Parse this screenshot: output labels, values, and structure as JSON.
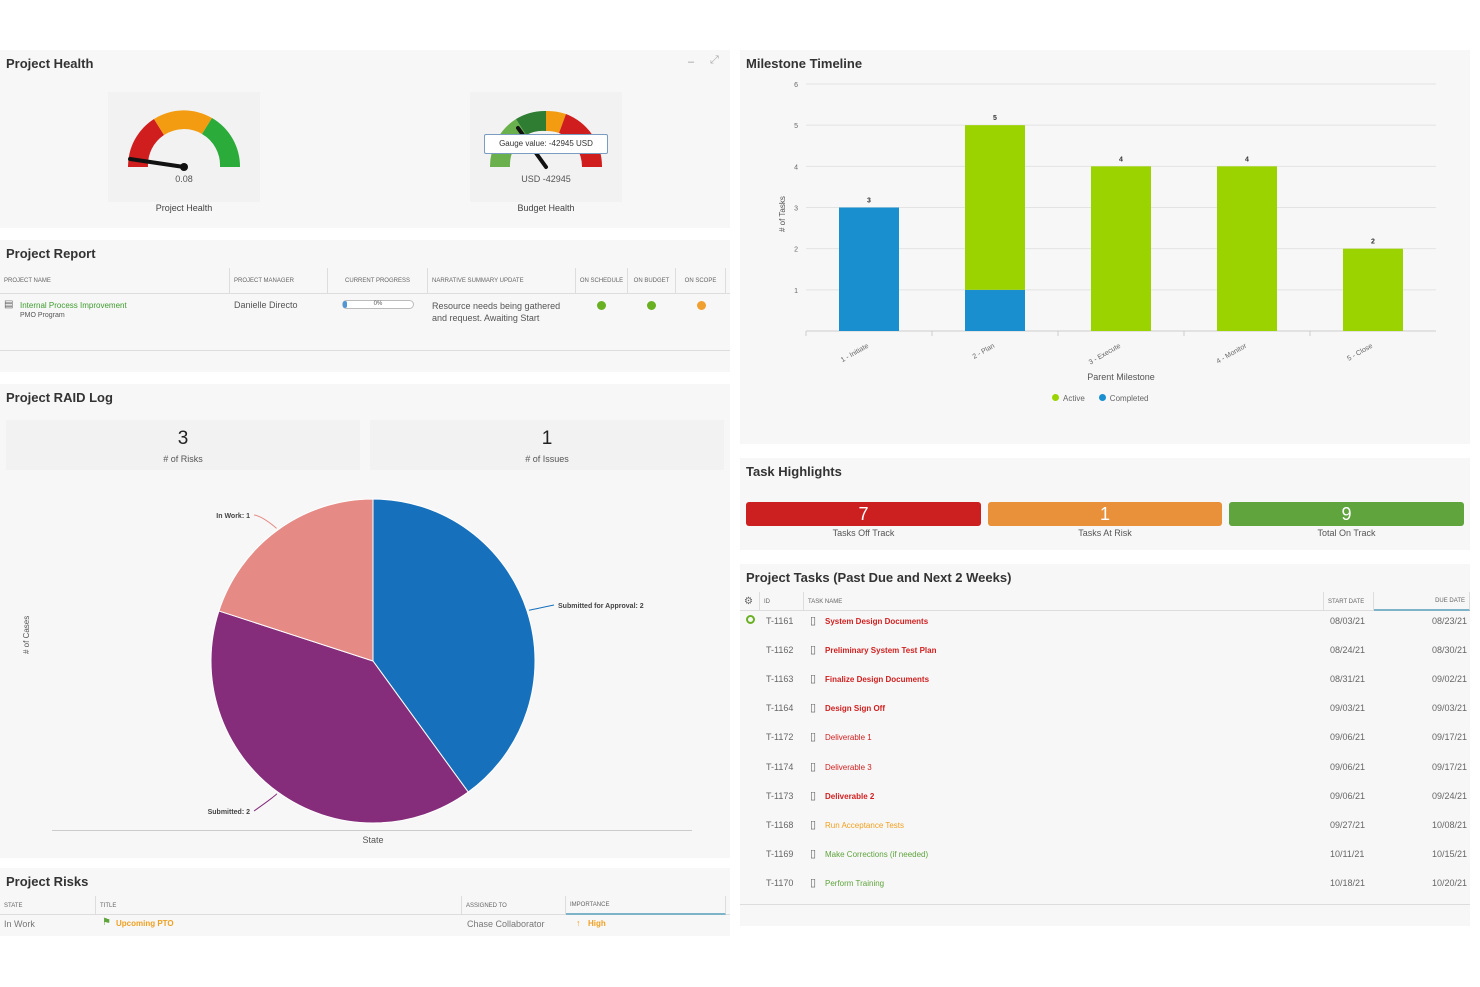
{
  "health": {
    "title": "Project Health",
    "gauge1": {
      "value_text": "0.08",
      "label": "Project Health"
    },
    "gauge2": {
      "value_text": "USD -42945",
      "label": "Budget Health",
      "tooltip": "Gauge value: -42945 USD"
    }
  },
  "report": {
    "title": "Project Report",
    "headers": [
      "Project Name",
      "Project Manager",
      "Current Progress",
      "Narrative Summary Update",
      "On Schedule",
      "On Budget",
      "On Scope"
    ],
    "row": {
      "name": "Internal Process Improvement",
      "program": "PMO Program",
      "manager": "Danielle Directo",
      "progress": "0%",
      "progress_value": 0,
      "narrative": "Resource needs being gathered and request. Awaiting Start",
      "status_colors": [
        "#6ab023",
        "#6ab023",
        "#f0a030"
      ]
    }
  },
  "raid": {
    "title": "Project RAID Log",
    "risks_count": "3",
    "risks_label": "# of Risks",
    "issues_count": "1",
    "issues_label": "# of Issues",
    "y_label": "# of Cases",
    "x_label": "State"
  },
  "risks": {
    "title": "Project Risks",
    "headers": [
      "State",
      "Title",
      "Assigned To",
      "Importance"
    ],
    "row": {
      "state": "In Work",
      "title": "Upcoming PTO",
      "assigned": "Chase Collaborator",
      "importance": "High"
    }
  },
  "milestone": {
    "title": "Milestone Timeline",
    "y_label": "# of Tasks",
    "x_label": "Parent Milestone",
    "legend": [
      "Active",
      "Completed"
    ]
  },
  "highlights": {
    "title": "Task Highlights",
    "tiles": [
      {
        "value": "7",
        "label": "Tasks Off Track",
        "color": "#cc1f1f"
      },
      {
        "value": "1",
        "label": "Tasks At Risk",
        "color": "#e8913a"
      },
      {
        "value": "9",
        "label": "Total On Track",
        "color": "#5fa43d"
      }
    ]
  },
  "tasks": {
    "title": "Project Tasks (Past Due and Next 2 Weeks)",
    "headers": [
      "ID",
      "Task Name",
      "Start Date",
      "Due Date"
    ],
    "rows": [
      {
        "id": "T-1161",
        "name": "System Design Documents",
        "start": "08/03/21",
        "due": "08/23/21",
        "color": "#d11f1f",
        "bold": true
      },
      {
        "id": "T-1162",
        "name": "Preliminary System Test Plan",
        "start": "08/24/21",
        "due": "08/30/21",
        "color": "#d11f1f",
        "bold": true
      },
      {
        "id": "T-1163",
        "name": "Finalize Design Documents",
        "start": "08/31/21",
        "due": "09/02/21",
        "color": "#d11f1f",
        "bold": true
      },
      {
        "id": "T-1164",
        "name": "Design Sign Off",
        "start": "09/03/21",
        "due": "09/03/21",
        "color": "#d11f1f",
        "bold": true
      },
      {
        "id": "T-1172",
        "name": "Deliverable 1",
        "start": "09/06/21",
        "due": "09/17/21",
        "color": "#d11f1f",
        "bold": false
      },
      {
        "id": "T-1174",
        "name": "Deliverable 3",
        "start": "09/06/21",
        "due": "09/17/21",
        "color": "#d11f1f",
        "bold": false
      },
      {
        "id": "T-1173",
        "name": "Deliverable 2",
        "start": "09/06/21",
        "due": "09/24/21",
        "color": "#d11f1f",
        "bold": true
      },
      {
        "id": "T-1168",
        "name": "Run Acceptance Tests",
        "start": "09/27/21",
        "due": "10/08/21",
        "color": "#f0a020",
        "bold": false
      },
      {
        "id": "T-1169",
        "name": "Make Corrections (if needed)",
        "start": "10/11/21",
        "due": "10/15/21",
        "color": "#5fa43d",
        "bold": false
      },
      {
        "id": "T-1170",
        "name": "Perform Training",
        "start": "10/18/21",
        "due": "10/20/21",
        "color": "#5fa43d",
        "bold": false
      }
    ]
  },
  "chart_data": [
    {
      "type": "bar",
      "categories": [
        "1 - Initiate",
        "2 - Plan",
        "3 - Execute",
        "4 - Monitor",
        "5 - Close"
      ],
      "series": [
        {
          "name": "Completed",
          "values": [
            3,
            1,
            0,
            0,
            0
          ],
          "color": "#1a8fd0"
        },
        {
          "name": "Active",
          "values": [
            0,
            4,
            4,
            4,
            2
          ],
          "color": "#9bd300"
        }
      ],
      "totals": [
        "3",
        "5",
        "4",
        "4",
        "2"
      ],
      "ylim": [
        0,
        6
      ],
      "yticks": [
        "1",
        "2",
        "3",
        "4",
        "5",
        "6"
      ],
      "stacked": true
    },
    {
      "type": "pie",
      "categories": [
        "Submitted for Approval",
        "Submitted",
        "In Work"
      ],
      "values": [
        2,
        2,
        1
      ],
      "labels": [
        "Submitted for Approval: 2",
        "Submitted: 2",
        "In Work: 1"
      ],
      "colors": [
        "#1670bb",
        "#852d7b",
        "#e58a85"
      ]
    }
  ]
}
